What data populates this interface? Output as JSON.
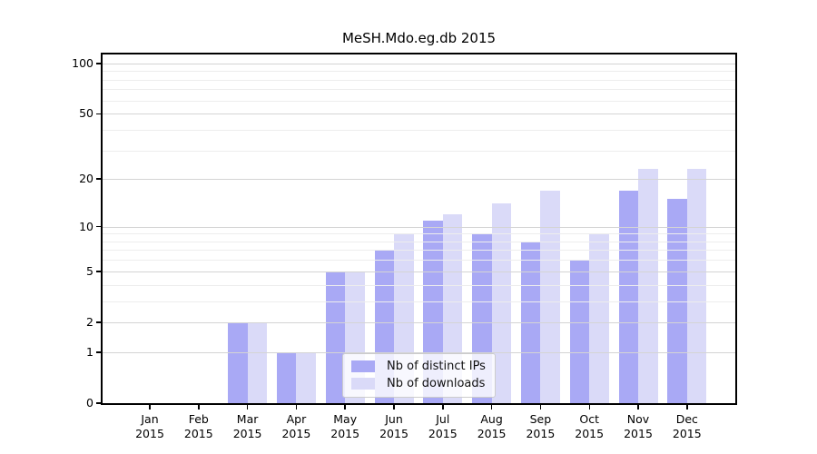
{
  "chart_data": {
    "type": "bar",
    "title": "MeSH.Mdo.eg.db 2015",
    "xlabel": "",
    "ylabel": "",
    "categories": [
      "Jan 2015",
      "Feb 2015",
      "Mar 2015",
      "Apr 2015",
      "May 2015",
      "Jun 2015",
      "Jul 2015",
      "Aug 2015",
      "Sep 2015",
      "Oct 2015",
      "Nov 2015",
      "Dec 2015"
    ],
    "series": [
      {
        "name": "Nb of distinct IPs",
        "color": "#a9a9f5",
        "values": [
          0,
          0,
          2,
          1,
          5,
          7,
          11,
          9,
          8,
          6,
          17,
          15
        ]
      },
      {
        "name": "Nb of downloads",
        "color": "#dadaf8",
        "values": [
          0,
          0,
          2,
          1,
          5,
          9,
          12,
          14,
          17,
          9,
          23,
          23
        ]
      }
    ],
    "yscale": "log1p",
    "ylim": [
      0,
      113
    ],
    "yticks": [
      0,
      1,
      2,
      5,
      10,
      20,
      50,
      100
    ],
    "minor_yticks": [
      3,
      4,
      6,
      7,
      8,
      9,
      30,
      40,
      60,
      70,
      80,
      90
    ],
    "grid": "horizontal",
    "legend_position": "lower center inside"
  }
}
